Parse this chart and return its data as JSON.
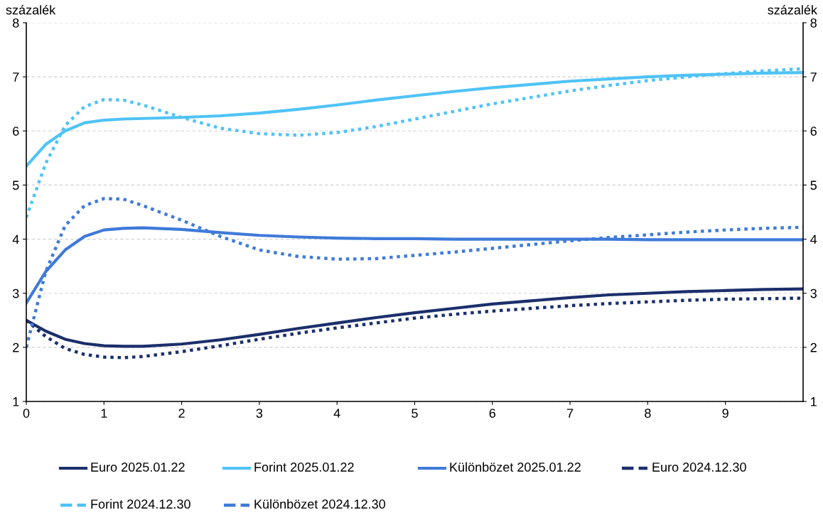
{
  "chart_data": {
    "type": "line",
    "ylabel": "százalék",
    "y2label": "százalék",
    "x": [
      0,
      0.25,
      0.5,
      0.75,
      1,
      1.25,
      1.5,
      2,
      2.5,
      3,
      3.5,
      4,
      4.5,
      5,
      5.5,
      6,
      6.5,
      7,
      7.5,
      8,
      8.5,
      9,
      9.5,
      10
    ],
    "xlim": [
      0,
      10
    ],
    "xticks": [
      0,
      1,
      2,
      3,
      4,
      5,
      6,
      7,
      8,
      9
    ],
    "ylim": [
      1,
      8
    ],
    "yticks": [
      1,
      2,
      3,
      4,
      5,
      6,
      7,
      8
    ],
    "y2lim": [
      1,
      8
    ],
    "y2ticks": [
      1,
      2,
      3,
      4,
      5,
      6,
      7,
      8
    ],
    "grid": "y",
    "legend": "bottom",
    "series": [
      {
        "name": "Euro 2025.01.22",
        "color": "#1b2f6b",
        "line_style": "solid",
        "values": [
          2.5,
          2.3,
          2.15,
          2.07,
          2.03,
          2.02,
          2.02,
          2.06,
          2.14,
          2.24,
          2.35,
          2.45,
          2.55,
          2.64,
          2.72,
          2.8,
          2.86,
          2.92,
          2.97,
          3.0,
          3.03,
          3.05,
          3.07,
          3.08
        ]
      },
      {
        "name": "Forint 2025.01.22",
        "color": "#4fc3f7",
        "line_style": "solid",
        "values": [
          5.35,
          5.75,
          6.0,
          6.15,
          6.2,
          6.22,
          6.23,
          6.25,
          6.28,
          6.33,
          6.4,
          6.48,
          6.57,
          6.65,
          6.73,
          6.8,
          6.86,
          6.92,
          6.96,
          7.0,
          7.03,
          7.05,
          7.07,
          7.08
        ]
      },
      {
        "name": "Különbözet 2025.01.22",
        "color": "#3f7ad9",
        "line_style": "solid",
        "values": [
          2.82,
          3.4,
          3.8,
          4.05,
          4.17,
          4.2,
          4.21,
          4.18,
          4.12,
          4.07,
          4.04,
          4.02,
          4.01,
          4.01,
          4.0,
          4.0,
          4.0,
          4.0,
          4.0,
          3.99,
          3.99,
          3.99,
          3.99,
          3.99
        ]
      },
      {
        "name": "Euro 2024.12.30",
        "color": "#1b2f6b",
        "line_style": "dotted",
        "values": [
          2.5,
          2.2,
          1.98,
          1.87,
          1.82,
          1.81,
          1.83,
          1.92,
          2.03,
          2.15,
          2.26,
          2.36,
          2.45,
          2.54,
          2.61,
          2.67,
          2.72,
          2.77,
          2.81,
          2.84,
          2.87,
          2.89,
          2.9,
          2.91
        ]
      },
      {
        "name": "Forint 2024.12.30",
        "color": "#4fc3f7",
        "line_style": "dotted",
        "values": [
          4.4,
          5.4,
          6.1,
          6.45,
          6.58,
          6.57,
          6.48,
          6.25,
          6.05,
          5.95,
          5.92,
          5.97,
          6.08,
          6.22,
          6.36,
          6.5,
          6.62,
          6.74,
          6.84,
          6.93,
          7.0,
          7.06,
          7.11,
          7.15
        ]
      },
      {
        "name": "Különbözet 2024.12.30",
        "color": "#3f7ad9",
        "line_style": "dotted",
        "values": [
          2.0,
          3.4,
          4.25,
          4.62,
          4.75,
          4.74,
          4.62,
          4.35,
          4.05,
          3.8,
          3.68,
          3.63,
          3.64,
          3.7,
          3.76,
          3.83,
          3.9,
          3.97,
          4.03,
          4.08,
          4.13,
          4.17,
          4.2,
          4.22
        ]
      }
    ]
  }
}
